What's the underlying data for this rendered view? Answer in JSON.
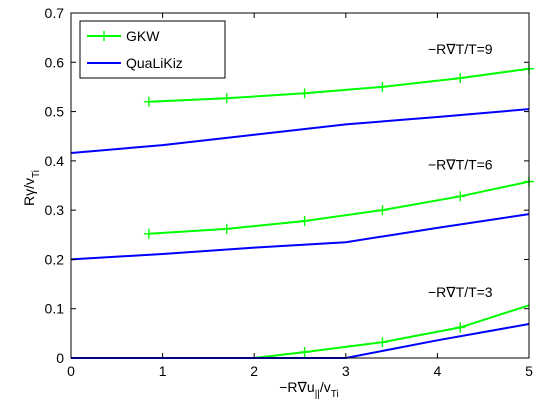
{
  "chart_data": {
    "type": "line",
    "xlabel_main": "−R∇u",
    "xlabel_sub1": "||",
    "xlabel_div": "/v",
    "xlabel_sub2": "Ti",
    "ylabel_main": "Rγ/v",
    "ylabel_sub": "Ti",
    "xlim": [
      0,
      5
    ],
    "ylim": [
      0,
      0.7
    ],
    "xticks": [
      0,
      1,
      2,
      3,
      4,
      5
    ],
    "yticks": [
      0,
      0.1,
      0.2,
      0.3,
      0.4,
      0.5,
      0.6,
      0.7
    ],
    "grid": false,
    "legend": {
      "placement": "top-left",
      "entries": [
        {
          "name": "GKW",
          "color": "#00ff00",
          "marker": "plus"
        },
        {
          "name": "QuaLiKiz",
          "color": "#0000ff",
          "marker": "none"
        }
      ]
    },
    "annotations": [
      {
        "text": "−R∇T/T=9",
        "x": 4.25,
        "y": 0.617
      },
      {
        "text": "−R∇T/T=6",
        "x": 4.25,
        "y": 0.382
      },
      {
        "text": "−R∇T/T=3",
        "x": 4.25,
        "y": 0.124
      }
    ],
    "series": [
      {
        "name": "GKW",
        "group": "-R∇T/T=9",
        "color": "#00ff00",
        "marker": "plus",
        "x": [
          0.85,
          1.7,
          2.55,
          3.4,
          4.25,
          5.0
        ],
        "y": [
          0.52,
          0.527,
          0.537,
          0.55,
          0.568,
          0.587
        ]
      },
      {
        "name": "GKW",
        "group": "-R∇T/T=6",
        "color": "#00ff00",
        "marker": "plus",
        "x": [
          0.85,
          1.7,
          2.55,
          3.4,
          4.25,
          5.0
        ],
        "y": [
          0.252,
          0.262,
          0.278,
          0.3,
          0.328,
          0.358
        ]
      },
      {
        "name": "GKW",
        "group": "-R∇T/T=3",
        "color": "#00ff00",
        "marker": "plus",
        "x": [
          0,
          1.7,
          2.0,
          2.55,
          3.4,
          4.25,
          5.0
        ],
        "y": [
          0,
          0,
          0,
          0.012,
          0.032,
          0.062,
          0.107
        ],
        "marker_x": [
          2.55,
          3.4,
          4.25
        ]
      },
      {
        "name": "QuaLiKiz",
        "group": "-R∇T/T=9",
        "color": "#0000ff",
        "marker": "none",
        "x": [
          0,
          1,
          2,
          3,
          4,
          5
        ],
        "y": [
          0.416,
          0.432,
          0.453,
          0.474,
          0.489,
          0.505
        ]
      },
      {
        "name": "QuaLiKiz",
        "group": "-R∇T/T=6",
        "color": "#0000ff",
        "marker": "none",
        "x": [
          0,
          1,
          2,
          3,
          4,
          5
        ],
        "y": [
          0.2,
          0.211,
          0.224,
          0.235,
          0.264,
          0.292
        ]
      },
      {
        "name": "QuaLiKiz",
        "group": "-R∇T/T=3",
        "color": "#0000ff",
        "marker": "none",
        "x": [
          0,
          1,
          2,
          3,
          4,
          5
        ],
        "y": [
          0,
          0,
          0,
          0,
          0.036,
          0.069
        ]
      }
    ]
  }
}
